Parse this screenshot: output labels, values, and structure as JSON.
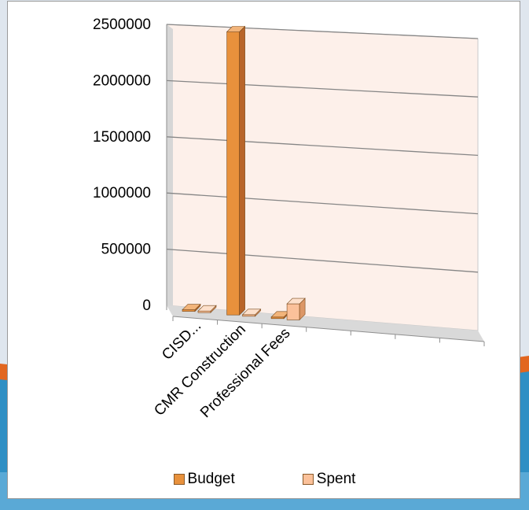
{
  "colors": {
    "budget": "#e8913c",
    "budget_side": "#b8652a",
    "budget_top": "#f2b47a",
    "spent": "#fbc19a",
    "spent_side": "#dc9767",
    "spent_top": "#fde0cb",
    "wall": "#fdf0ea",
    "floor": "#d9d9d9",
    "gridline": "#868686"
  },
  "chart_data": {
    "type": "bar",
    "style": "3d-clustered-column",
    "categories": [
      "CISD...",
      "CMR Construction",
      "Professional Fees"
    ],
    "series": [
      {
        "name": "Budget",
        "values": [
          10000,
          2500000,
          10000
        ]
      },
      {
        "name": "Spent",
        "values": [
          5000,
          5000,
          140000
        ]
      }
    ],
    "yticks": [
      "0",
      "500000",
      "1000000",
      "1500000",
      "2000000",
      "2500000"
    ],
    "ylim": [
      0,
      2500000
    ],
    "grid": true,
    "legend_position": "bottom"
  }
}
